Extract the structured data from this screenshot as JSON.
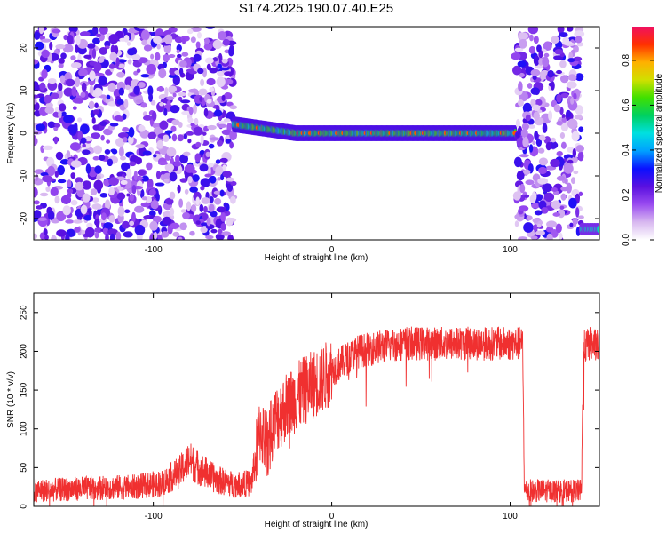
{
  "title": "S174.2025.190.07.40.E25",
  "chart_data": [
    {
      "type": "heatmap",
      "xlabel": "Height of straight line (km)",
      "ylabel": "Frequency (Hz)",
      "xlim": [
        -167,
        150
      ],
      "ylim": [
        -25,
        25
      ],
      "xticks": [
        -100,
        0,
        100
      ],
      "yticks": [
        -20,
        -10,
        0,
        10,
        20
      ],
      "colorbar": {
        "label": "Normalized spectral amplitude",
        "range": [
          0,
          0.95
        ],
        "ticks": [
          0.0,
          0.2,
          0.4,
          0.6,
          0.8
        ],
        "tick_labels": [
          "0.0",
          "0.2",
          "0.4",
          "0.6",
          "0.8"
        ],
        "colors": [
          "#ffffff",
          "#d8b8f0",
          "#9a4cf0",
          "#5a10e0",
          "#0a10ff",
          "#00a0ff",
          "#00e0e0",
          "#00d060",
          "#40e000",
          "#d0e000",
          "#ffb000",
          "#ff3000",
          "#f01060"
        ]
      },
      "features": [
        {
          "name": "noise",
          "x_range": [
            -167,
            -55
          ],
          "freq_range": [
            -25,
            25
          ],
          "level": 0.12
        },
        {
          "name": "ridge",
          "x_range": [
            -55,
            103
          ],
          "freq_center": 0,
          "freq_halfwidth": 2,
          "level": 0.55
        },
        {
          "name": "noise",
          "x_range": [
            103,
            140
          ],
          "freq_range": [
            -25,
            25
          ],
          "level": 0.12
        },
        {
          "name": "burst",
          "x_range": [
            140,
            150
          ],
          "freq_range": [
            -25,
            -20
          ],
          "level": 0.5
        }
      ]
    },
    {
      "type": "line",
      "xlabel": "Height of straight line (km)",
      "ylabel": "SNR (10 * v/v)",
      "xlim": [
        -167,
        150
      ],
      "ylim": [
        0,
        275
      ],
      "xticks": [
        -100,
        0,
        100
      ],
      "yticks": [
        0,
        50,
        100,
        150,
        200,
        250
      ],
      "color": "#f03030",
      "series": [
        {
          "x": [
            -167,
            -150,
            -130,
            -110,
            -95,
            -85,
            -80,
            -75,
            -65,
            -55,
            -45,
            -40,
            -36,
            -32,
            -25,
            -15,
            -5,
            5,
            15,
            25,
            40,
            60,
            80,
            100,
            107,
            108,
            120,
            135,
            140,
            141,
            145,
            150
          ],
          "y": [
            20,
            22,
            24,
            25,
            30,
            45,
            60,
            50,
            35,
            28,
            30,
            100,
            80,
            110,
            130,
            150,
            165,
            185,
            200,
            205,
            210,
            210,
            210,
            210,
            210,
            20,
            20,
            20,
            20,
            205,
            210,
            205
          ]
        }
      ]
    }
  ]
}
